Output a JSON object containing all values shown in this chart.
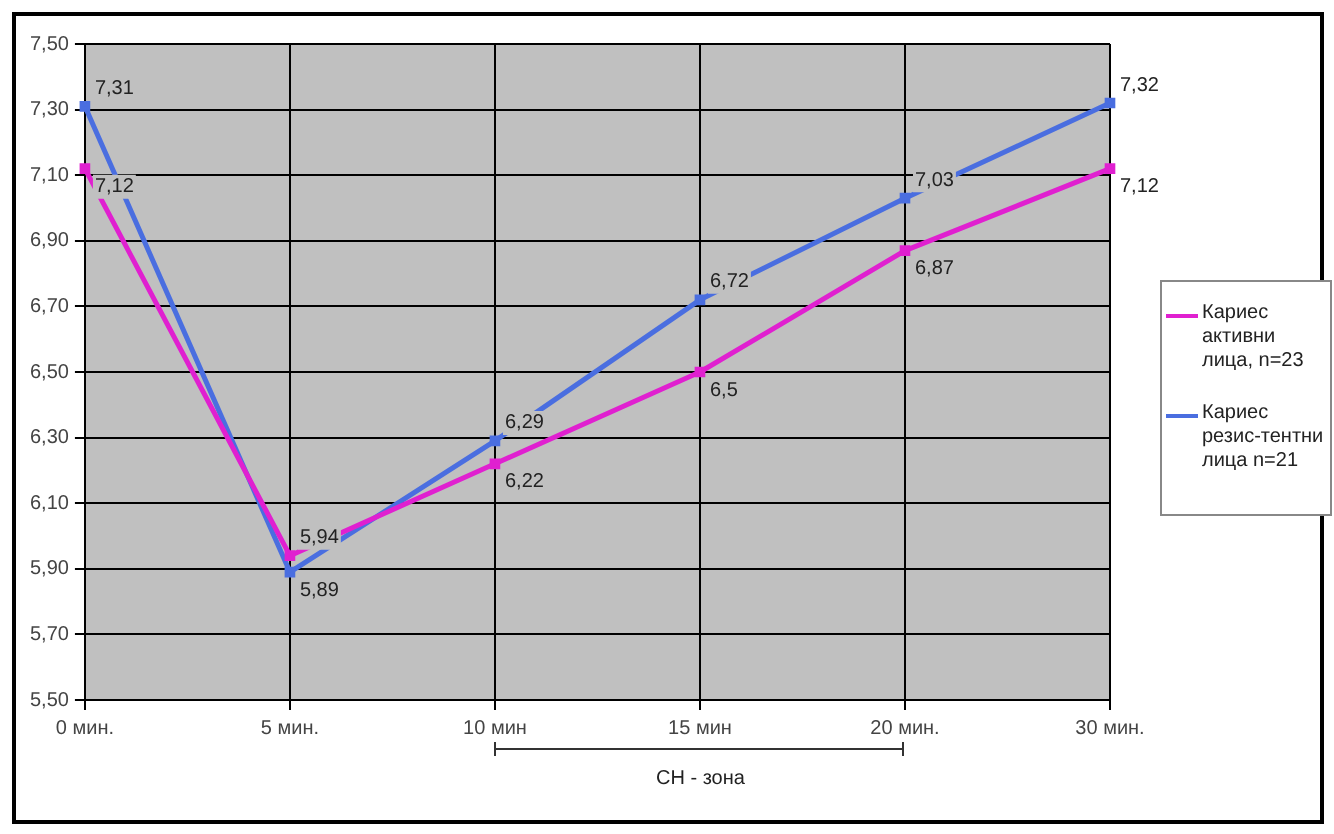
{
  "chart_data": {
    "type": "line",
    "categories": [
      "0 мин.",
      "5 мин.",
      "10 мин",
      "15 мин",
      "20 мин.",
      "30 мин."
    ],
    "series": [
      {
        "name": "Кариес активни лица, n=23",
        "color": "#e020d0",
        "values": [
          7.12,
          5.94,
          6.22,
          6.5,
          6.87,
          7.12
        ],
        "value_labels": [
          "7,12",
          "5,94",
          "6,22",
          "6,5",
          "6,87",
          "7,12"
        ]
      },
      {
        "name": "Кариес резис-тентни лица n=21",
        "color": "#4a6ee0",
        "values": [
          7.31,
          5.89,
          6.29,
          6.72,
          7.03,
          7.32
        ],
        "value_labels": [
          "7,31",
          "5,89",
          "6,29",
          "6,72",
          "7,03",
          "7,32"
        ]
      }
    ],
    "ylim": [
      5.5,
      7.5
    ],
    "yticks": [
      {
        "value": 5.5,
        "label": "5,50"
      },
      {
        "value": 5.7,
        "label": "5,70"
      },
      {
        "value": 5.9,
        "label": "5,90"
      },
      {
        "value": 6.1,
        "label": "6,10"
      },
      {
        "value": 6.3,
        "label": "6,30"
      },
      {
        "value": 6.5,
        "label": "6,50"
      },
      {
        "value": 6.7,
        "label": "6,70"
      },
      {
        "value": 6.9,
        "label": "6,90"
      },
      {
        "value": 7.1,
        "label": "7,10"
      },
      {
        "value": 7.3,
        "label": "7,30"
      },
      {
        "value": 7.5,
        "label": "7,50"
      }
    ],
    "annotations": [
      "CH - зона"
    ],
    "grid": true,
    "legend": "right",
    "marker": "square",
    "line_style": "solid"
  }
}
